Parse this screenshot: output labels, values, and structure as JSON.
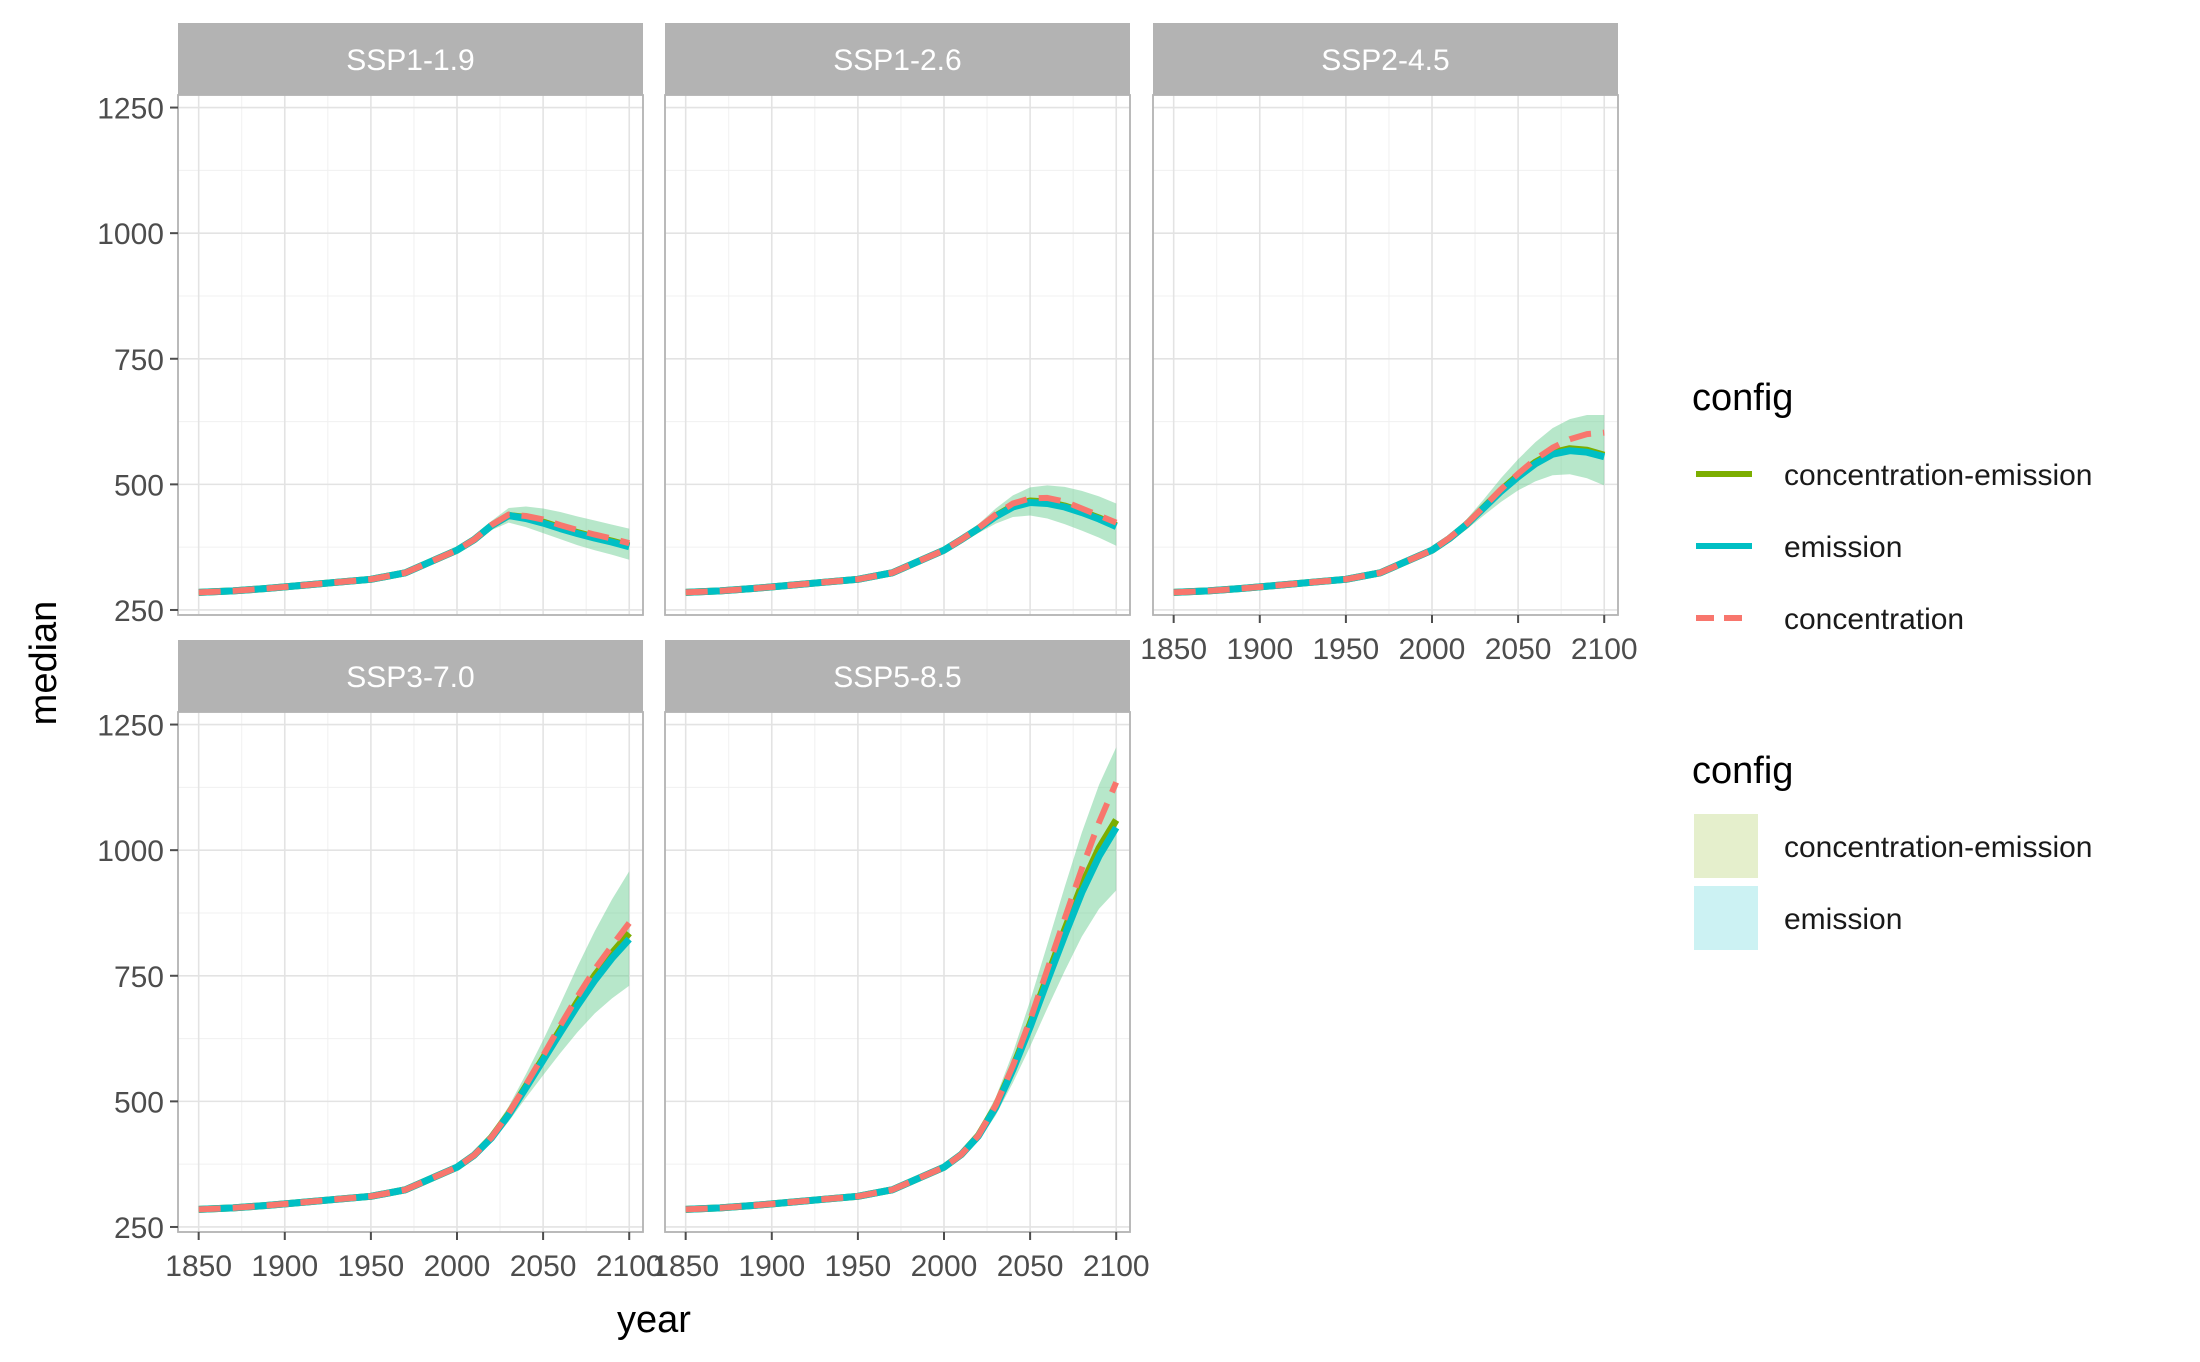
{
  "chart_data": {
    "type": "line",
    "layout": "faceted",
    "xlabel": "year",
    "ylabel": "median",
    "x_ticks": [
      1850,
      1900,
      1950,
      2000,
      2050,
      2100
    ],
    "y_ticks": [
      250,
      500,
      750,
      1000,
      1250
    ],
    "xlim": [
      1838,
      2108
    ],
    "ylim": [
      240,
      1275
    ],
    "grid": true,
    "legend_position": "right",
    "legends": [
      {
        "title": "config",
        "kind": "line",
        "entries": [
          {
            "label": "concentration-emission",
            "color": "#7CAE00",
            "dash": "solid"
          },
          {
            "label": "emission",
            "color": "#00BFC4",
            "dash": "solid"
          },
          {
            "label": "concentration",
            "color": "#F8766D",
            "dash": "dashed"
          }
        ]
      },
      {
        "title": "config",
        "kind": "fill",
        "entries": [
          {
            "label": "concentration-emission",
            "color": "#7CAE00"
          },
          {
            "label": "emission",
            "color": "#00BFC4"
          }
        ]
      }
    ],
    "x": [
      1850,
      1870,
      1890,
      1910,
      1930,
      1950,
      1970,
      1990,
      2000,
      2010,
      2020,
      2030,
      2040,
      2050,
      2060,
      2070,
      2080,
      2090,
      2100
    ],
    "panels": [
      {
        "title": "SSP1-1.9",
        "series": [
          {
            "name": "concentration-emission",
            "values": [
              285,
              288,
              293,
              299,
              305,
              311,
              324,
              354,
              369,
              390,
              418,
              438,
              434,
              425,
              414,
              404,
              395,
              387,
              378
            ]
          },
          {
            "name": "emission",
            "values": [
              285,
              288,
              293,
              299,
              305,
              311,
              324,
              354,
              369,
              390,
              418,
              438,
              432,
              423,
              412,
              402,
              393,
              385,
              376
            ]
          },
          {
            "name": "concentration",
            "values": [
              285,
              288,
              293,
              299,
              305,
              311,
              324,
              354,
              369,
              390,
              419,
              440,
              437,
              430,
              419,
              409,
              400,
              392,
              383
            ]
          }
        ],
        "band_low": [
          283,
          286,
          291,
          296,
          302,
          308,
          320,
          349,
          363,
          383,
          409,
          424,
          415,
          403,
          391,
          379,
          369,
          360,
          350
        ],
        "band_high": [
          287,
          290,
          296,
          302,
          308,
          315,
          328,
          359,
          375,
          397,
          427,
          453,
          456,
          452,
          445,
          436,
          428,
          420,
          412
        ]
      },
      {
        "title": "SSP1-2.6",
        "series": [
          {
            "name": "concentration-emission",
            "values": [
              285,
              288,
              293,
              299,
              305,
              311,
              324,
              354,
              369,
              390,
              412,
              437,
              457,
              467,
              465,
              457,
              446,
              433,
              418
            ]
          },
          {
            "name": "emission",
            "values": [
              285,
              288,
              293,
              299,
              305,
              311,
              324,
              354,
              369,
              390,
              412,
              436,
              455,
              464,
              462,
              455,
              444,
              431,
              416
            ]
          },
          {
            "name": "concentration",
            "values": [
              285,
              288,
              293,
              299,
              305,
              311,
              324,
              354,
              369,
              390,
              413,
              440,
              462,
              472,
              473,
              466,
              452,
              438,
              424
            ]
          }
        ],
        "band_low": [
          283,
          286,
          291,
          296,
          302,
          308,
          320,
          349,
          363,
          383,
          403,
          422,
          435,
          438,
          432,
          421,
          408,
          394,
          378
        ],
        "band_high": [
          287,
          290,
          296,
          302,
          308,
          315,
          328,
          359,
          375,
          397,
          421,
          452,
          478,
          494,
          498,
          495,
          487,
          476,
          462
        ]
      },
      {
        "title": "SSP2-4.5",
        "series": [
          {
            "name": "concentration-emission",
            "values": [
              285,
              288,
              293,
              299,
              305,
              311,
              324,
              354,
              369,
              392,
              420,
              454,
              488,
              518,
              544,
              563,
              571,
              568,
              558
            ]
          },
          {
            "name": "emission",
            "values": [
              285,
              288,
              293,
              299,
              305,
              311,
              324,
              354,
              369,
              392,
              420,
              453,
              486,
              515,
              541,
              560,
              567,
              564,
              555
            ]
          },
          {
            "name": "concentration",
            "values": [
              285,
              288,
              293,
              299,
              305,
              311,
              324,
              354,
              369,
              393,
              421,
              455,
              490,
              521,
              550,
              573,
              590,
              600,
              603
            ]
          }
        ],
        "band_low": [
          283,
          286,
          291,
          296,
          302,
          308,
          320,
          349,
          363,
          385,
          410,
          438,
          465,
          488,
          506,
          518,
          520,
          512,
          498
        ],
        "band_high": [
          287,
          290,
          296,
          302,
          308,
          315,
          328,
          359,
          375,
          399,
          430,
          470,
          512,
          550,
          584,
          612,
          630,
          638,
          638
        ]
      },
      {
        "title": "SSP3-7.0",
        "series": [
          {
            "name": "concentration-emission",
            "values": [
              285,
              288,
              293,
              299,
              305,
              311,
              324,
              354,
              369,
              393,
              428,
              475,
              530,
              586,
              643,
              699,
              751,
              795,
              835
            ]
          },
          {
            "name": "emission",
            "values": [
              285,
              288,
              293,
              299,
              305,
              311,
              324,
              354,
              369,
              393,
              427,
              473,
              527,
              582,
              637,
              691,
              741,
              785,
              823
            ]
          },
          {
            "name": "concentration",
            "values": [
              285,
              288,
              293,
              299,
              305,
              311,
              324,
              354,
              369,
              393,
              428,
              476,
              533,
              591,
              651,
              709,
              763,
              810,
              855
            ]
          }
        ],
        "band_low": [
          283,
          286,
          291,
          296,
          302,
          308,
          320,
          349,
          363,
          386,
          418,
          460,
          507,
          552,
          596,
          638,
          675,
          705,
          730
        ],
        "band_high": [
          287,
          290,
          296,
          302,
          308,
          315,
          328,
          359,
          375,
          400,
          438,
          490,
          554,
          622,
          694,
          769,
          839,
          902,
          958
        ]
      },
      {
        "title": "SSP5-8.5",
        "series": [
          {
            "name": "concentration-emission",
            "values": [
              285,
              288,
              293,
              299,
              305,
              311,
              324,
              354,
              369,
              394,
              432,
              490,
              567,
              654,
              748,
              841,
              930,
              1004,
              1060
            ]
          },
          {
            "name": "emission",
            "values": [
              285,
              288,
              293,
              299,
              305,
              311,
              324,
              354,
              369,
              394,
              431,
              488,
              563,
              648,
              740,
              830,
              916,
              988,
              1045
            ]
          },
          {
            "name": "concentration",
            "values": [
              285,
              288,
              293,
              299,
              305,
              311,
              324,
              354,
              369,
              394,
              432,
              492,
              571,
              662,
              762,
              863,
              963,
              1055,
              1135
            ]
          }
        ],
        "band_low": [
          283,
          286,
          291,
          296,
          302,
          308,
          320,
          349,
          363,
          386,
          421,
          472,
          537,
          609,
          685,
          759,
          828,
          883,
          920
        ],
        "band_high": [
          287,
          290,
          296,
          302,
          308,
          315,
          328,
          359,
          375,
          402,
          443,
          508,
          597,
          700,
          812,
          926,
          1035,
          1130,
          1205
        ]
      }
    ]
  }
}
